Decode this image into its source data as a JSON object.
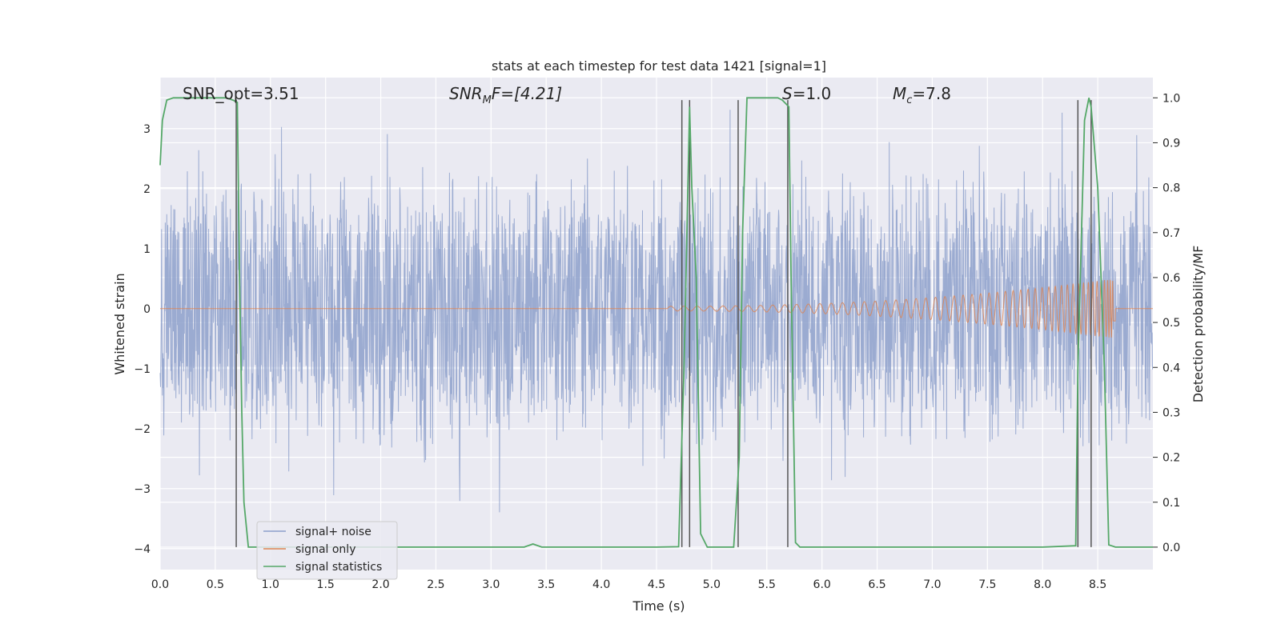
{
  "chart_data": {
    "type": "line",
    "title": "stats at each timestep for test data 1421 [signal=1]",
    "xlabel": "Time (s)",
    "ylabel_left": "Whitened strain",
    "ylabel_right": "Detection probability/MF",
    "xlim": [
      0.0,
      9.0
    ],
    "ylim_left": [
      -4.35,
      3.85
    ],
    "ylim_right": [
      -0.05,
      1.045
    ],
    "xticks": [
      0.0,
      0.5,
      1.0,
      1.5,
      2.0,
      2.5,
      3.0,
      3.5,
      4.0,
      4.5,
      5.0,
      5.5,
      6.0,
      6.5,
      7.0,
      7.5,
      8.0,
      8.5
    ],
    "xtick_labels": [
      "0.0",
      "0.5",
      "1.0",
      "1.5",
      "2.0",
      "2.5",
      "3.0",
      "3.5",
      "4.0",
      "4.5",
      "5.0",
      "5.5",
      "6.0",
      "6.5",
      "7.0",
      "7.5",
      "8.0",
      "8.5"
    ],
    "yticks_left": [
      3,
      2,
      1,
      0,
      -1,
      -2,
      -3,
      -4
    ],
    "ytick_labels_left": [
      "3",
      "2",
      "1",
      "0",
      "−1",
      "−2",
      "−3",
      "−4"
    ],
    "yticks_right": [
      1.0,
      0.9,
      0.8,
      0.7,
      0.6,
      0.5,
      0.4,
      0.3,
      0.2,
      0.1,
      0.0
    ],
    "ytick_labels_right": [
      "1.0",
      "0.9",
      "0.8",
      "0.7",
      "0.6",
      "0.5",
      "0.4",
      "0.3",
      "0.2",
      "0.1",
      "0.0"
    ],
    "annotations": {
      "snr_opt": "SNR_opt=3.51",
      "snr_mf_prefix": "SNR",
      "snr_mf_sub": "M",
      "snr_mf_suffix": "F=[4.21]",
      "s_prefix": "S",
      "s_suffix": "=1.0",
      "mc_prefix": "M",
      "mc_sub": "c",
      "mc_suffix": "=7.8"
    },
    "legend": [
      {
        "label": "signal+ noise",
        "color": "#8da0cb"
      },
      {
        "label": "signal only",
        "color": "#dd8452"
      },
      {
        "label": "signal statistics",
        "color": "#55a868"
      }
    ],
    "legend_position": "lower-left",
    "noise_series": {
      "name": "signal+ noise",
      "color": "#8da0cb",
      "sample_rate": 300,
      "core_amplitude": 1.6,
      "spike_range": [
        -3.5,
        3.4
      ]
    },
    "signal_series": {
      "name": "signal only",
      "color": "#dd8452",
      "start": 4.6,
      "end": 8.66,
      "peak_amplitude": 0.5
    },
    "statistics_series": {
      "name": "signal statistics",
      "color": "#55a868",
      "x": [
        0.0,
        0.02,
        0.06,
        0.12,
        0.2,
        0.3,
        0.4,
        0.5,
        0.6,
        0.66,
        0.7,
        0.72,
        0.74,
        0.76,
        0.8,
        1.0,
        2.0,
        3.0,
        3.3,
        3.38,
        3.46,
        3.6,
        4.0,
        4.5,
        4.7,
        4.75,
        4.8,
        4.82,
        4.86,
        4.9,
        4.96,
        5.0,
        5.2,
        5.25,
        5.28,
        5.32,
        5.5,
        5.6,
        5.64,
        5.7,
        5.72,
        5.76,
        5.8,
        6.0,
        7.0,
        8.0,
        8.3,
        8.32,
        8.38,
        8.42,
        8.44,
        8.5,
        8.56,
        8.6,
        8.66,
        8.7,
        9.0
      ],
      "y": [
        0.85,
        0.95,
        0.995,
        1.0,
        1.0,
        1.0,
        1.0,
        1.0,
        1.0,
        0.995,
        0.99,
        0.6,
        0.3,
        0.1,
        0.0,
        0.0,
        0.0,
        0.0,
        0.0,
        0.007,
        0.0,
        0.0,
        0.0,
        0.0,
        0.001,
        0.4,
        0.98,
        0.8,
        0.6,
        0.03,
        0.0,
        0.0,
        0.0,
        0.2,
        0.7,
        1.0,
        1.0,
        1.0,
        0.995,
        0.98,
        0.6,
        0.01,
        0.0,
        0.0,
        0.0,
        0.0,
        0.003,
        0.4,
        0.95,
        1.0,
        0.98,
        0.8,
        0.4,
        0.005,
        0.0,
        0.0,
        0.0
      ]
    },
    "vertical_lines": [
      0.69,
      4.73,
      4.8,
      5.24,
      5.69,
      8.32,
      8.44
    ],
    "vertical_line_top": 0.995
  }
}
